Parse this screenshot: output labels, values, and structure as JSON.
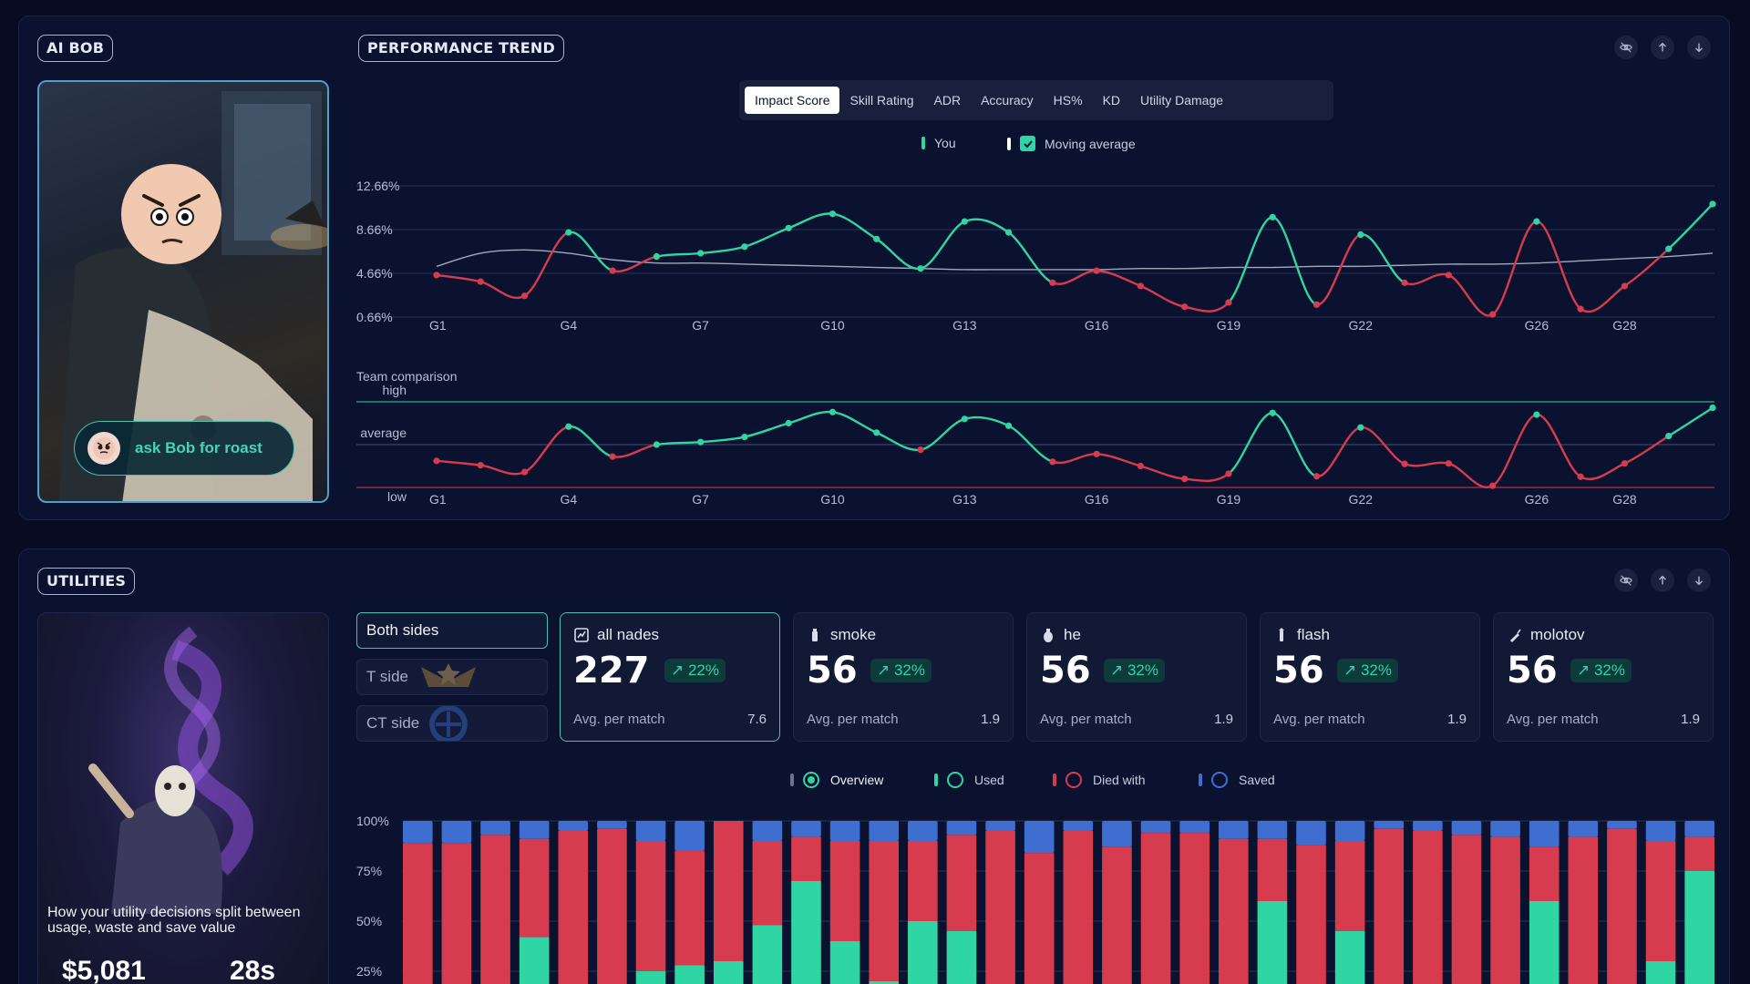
{
  "ai_bob": {
    "title": "AI BOB",
    "ask_button_label": "ask Bob for roast"
  },
  "performance": {
    "title": "PERFORMANCE TREND",
    "tabs": [
      "Impact Score",
      "Skill Rating",
      "ADR",
      "Accuracy",
      "HS%",
      "KD",
      "Utility Damage"
    ],
    "active_tab": "Impact Score",
    "legend": {
      "you": "You",
      "moving_average": "Moving average",
      "moving_average_checked": true
    },
    "team_comparison_label": "Team comparison"
  },
  "chart_data": [
    {
      "type": "line",
      "title": "",
      "x": [
        "G1",
        "G2",
        "G3",
        "G4",
        "G5",
        "G6",
        "G7",
        "G8",
        "G9",
        "G10",
        "G11",
        "G12",
        "G13",
        "G14",
        "G15",
        "G16",
        "G17",
        "G18",
        "G19",
        "G20",
        "G21",
        "G22",
        "G23",
        "G24",
        "G25",
        "G26",
        "G27",
        "G28",
        "G29",
        "G30"
      ],
      "x_tick_labels": [
        "G1",
        "G4",
        "G7",
        "G10",
        "G13",
        "G16",
        "G19",
        "G22",
        "G26",
        "G28"
      ],
      "y_tick_labels": [
        "12.66%",
        "8.66%",
        "4.66%",
        "0.66%"
      ],
      "ylim": [
        0.66,
        12.66
      ],
      "series": [
        {
          "name": "You",
          "values": [
            4.5,
            3.9,
            2.6,
            8.4,
            4.9,
            6.2,
            6.5,
            7.1,
            8.8,
            10.1,
            7.8,
            5.1,
            9.4,
            8.4,
            3.8,
            4.9,
            3.5,
            1.6,
            2.0,
            9.8,
            1.8,
            8.2,
            3.8,
            4.5,
            0.9,
            9.4,
            1.4,
            3.5,
            6.9,
            11.0
          ]
        },
        {
          "name": "Moving average",
          "values": [
            5.3,
            6.5,
            6.8,
            6.5,
            5.9,
            5.6,
            5.6,
            5.5,
            5.4,
            5.3,
            5.2,
            5.1,
            5.0,
            5.0,
            5.0,
            5.0,
            5.1,
            5.1,
            5.2,
            5.2,
            5.3,
            5.3,
            5.4,
            5.5,
            5.5,
            5.6,
            5.8,
            6.0,
            6.2,
            6.5
          ]
        }
      ],
      "color_rule": "green above moving average, red below"
    },
    {
      "type": "line",
      "title": "Team comparison",
      "x": [
        "G1",
        "G2",
        "G3",
        "G4",
        "G5",
        "G6",
        "G7",
        "G8",
        "G9",
        "G10",
        "G11",
        "G12",
        "G13",
        "G14",
        "G15",
        "G16",
        "G17",
        "G18",
        "G19",
        "G20",
        "G21",
        "G22",
        "G23",
        "G24",
        "G25",
        "G26",
        "G27",
        "G28",
        "G29",
        "G30"
      ],
      "x_tick_labels": [
        "G1",
        "G4",
        "G7",
        "G10",
        "G13",
        "G16",
        "G19",
        "G22",
        "G26",
        "G28"
      ],
      "y_tick_labels": [
        "high",
        "average",
        "low"
      ],
      "ylim": [
        0,
        2
      ],
      "series": [
        {
          "name": "You",
          "values": [
            0.62,
            0.52,
            0.36,
            1.42,
            0.72,
            1.0,
            1.06,
            1.18,
            1.5,
            1.76,
            1.28,
            0.88,
            1.6,
            1.44,
            0.6,
            0.78,
            0.5,
            0.2,
            0.32,
            1.74,
            0.26,
            1.4,
            0.55,
            0.56,
            0.04,
            1.7,
            0.25,
            0.56,
            1.2,
            1.86
          ]
        }
      ],
      "reference_lines": [
        "high",
        "average",
        "low"
      ]
    },
    {
      "type": "bar",
      "title": "",
      "stacked": true,
      "y_tick_labels": [
        "100%",
        "75%",
        "50%",
        "25%"
      ],
      "ylim": [
        0,
        100
      ],
      "legend": [
        "Overview",
        "Used",
        "Died with",
        "Saved"
      ],
      "series": [
        {
          "name": "Used",
          "values": [
            10,
            0,
            0,
            42,
            10,
            0,
            25,
            28,
            30,
            48,
            70,
            40,
            20,
            50,
            45,
            5,
            10,
            0,
            0,
            0,
            0,
            0,
            60,
            0,
            45,
            0,
            10,
            0,
            0,
            60,
            0,
            0,
            30,
            75
          ]
        },
        {
          "name": "Died with",
          "values": [
            79,
            89,
            93,
            49,
            85,
            96,
            65,
            57,
            70,
            42,
            22,
            50,
            70,
            40,
            48,
            90,
            74,
            95,
            87,
            94,
            94,
            91,
            31,
            88,
            45,
            96,
            85,
            93,
            92,
            27,
            92,
            96,
            60,
            17
          ]
        },
        {
          "name": "Saved",
          "values": [
            11,
            11,
            7,
            9,
            5,
            4,
            10,
            15,
            0,
            10,
            8,
            10,
            10,
            10,
            7,
            5,
            16,
            5,
            13,
            6,
            6,
            9,
            9,
            12,
            10,
            4,
            5,
            7,
            8,
            13,
            8,
            4,
            10,
            8
          ]
        }
      ]
    }
  ],
  "utilities": {
    "title": "UTILITIES",
    "card_caption": "How your utility decisions split between usage, waste and save value",
    "card_value_1": "$5,081",
    "card_value_2": "28s",
    "sides": [
      "Both sides",
      "T side",
      "CT side"
    ],
    "active_side": "Both sides",
    "stats": [
      {
        "name": "all nades",
        "icon": "nades-icon",
        "value": "227",
        "delta": "22%",
        "avg_label": "Avg. per match",
        "avg": "7.6"
      },
      {
        "name": "smoke",
        "icon": "smoke-icon",
        "value": "56",
        "delta": "32%",
        "avg_label": "Avg. per match",
        "avg": "1.9"
      },
      {
        "name": "he",
        "icon": "grenade-icon",
        "value": "56",
        "delta": "32%",
        "avg_label": "Avg. per match",
        "avg": "1.9"
      },
      {
        "name": "flash",
        "icon": "flash-icon",
        "value": "56",
        "delta": "32%",
        "avg_label": "Avg. per match",
        "avg": "1.9"
      },
      {
        "name": "molotov",
        "icon": "molotov-icon",
        "value": "56",
        "delta": "32%",
        "avg_label": "Avg. per match",
        "avg": "1.9"
      }
    ],
    "legend": {
      "overview": "Overview",
      "used": "Used",
      "died_with": "Died with",
      "saved": "Saved"
    }
  },
  "colors": {
    "green": "#2fd6a4",
    "red": "#d73b4e",
    "blue": "#3e6fd0",
    "accent_border": "#46c3b0",
    "background": "#070c22"
  }
}
